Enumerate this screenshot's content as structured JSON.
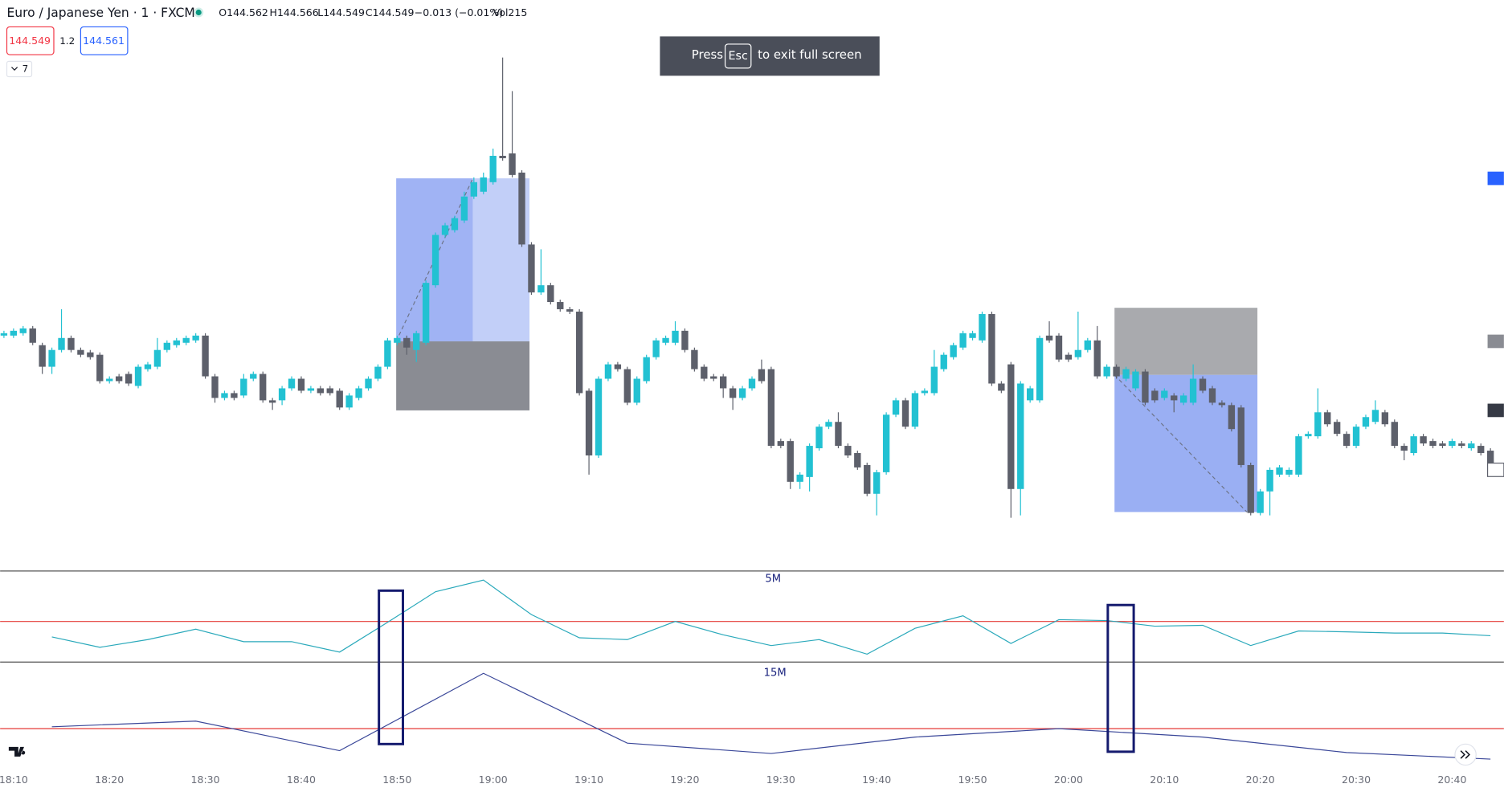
{
  "header": {
    "symbol": "Euro / Japanese Yen · 1 · FXCM",
    "open": "O144.562",
    "high": "H144.566",
    "low": "L144.549",
    "close": "C144.549",
    "change": "−0.013 (−0.01%)",
    "volume": "Vol215",
    "sell": "144.549",
    "spread": "1.2",
    "buy": "144.561",
    "indicators": "7"
  },
  "toast": {
    "press": "Press",
    "key": "Esc",
    "rest": "to exit full screen"
  },
  "chart_data": [
    {
      "type": "candlestick",
      "up_color": "#22c1d2",
      "down_color": "#5d606b",
      "ylim": [
        144.5448,
        144.5686
      ],
      "categories": [
        null,
        "18:10",
        null,
        null,
        null,
        null,
        null,
        null,
        null,
        null,
        null,
        "18:20",
        null,
        null,
        null,
        null,
        null,
        null,
        null,
        null,
        null,
        "18:30",
        null,
        null,
        null,
        null,
        null,
        null,
        null,
        null,
        null,
        "18:40",
        null,
        null,
        null,
        null,
        null,
        null,
        null,
        null,
        null,
        "18:50",
        null,
        null,
        null,
        null,
        null,
        null,
        null,
        null,
        null,
        "19:00",
        null,
        null,
        null,
        null,
        null,
        null,
        null,
        null,
        null,
        "19:10",
        null,
        null,
        null,
        null,
        null,
        null,
        null,
        null,
        null,
        "19:20",
        null,
        null,
        null,
        null,
        null,
        null,
        null,
        null,
        null,
        "19:30",
        null,
        null,
        null,
        null,
        null,
        null,
        null,
        null,
        null,
        "19:40",
        null,
        null,
        null,
        null,
        null,
        null,
        null,
        null,
        null,
        "19:50",
        null,
        null,
        null,
        null,
        null,
        null,
        null,
        null,
        null,
        "20:00",
        null,
        null,
        null,
        null,
        null,
        null,
        null,
        null,
        null,
        "20:10",
        null,
        null,
        null,
        null,
        null,
        null,
        null,
        null,
        null,
        "20:20",
        null,
        null,
        null,
        null,
        null,
        null,
        null,
        null,
        null,
        "20:30",
        null,
        null,
        null,
        null,
        null,
        null,
        null,
        null,
        null,
        "20:40",
        null,
        null,
        null,
        null
      ],
      "open": [
        144.5546,
        144.5546,
        144.5547,
        144.5549,
        144.5542,
        144.5533,
        144.554,
        144.5545,
        144.554,
        144.5539,
        144.5538,
        144.5527,
        144.5529,
        144.553,
        144.5525,
        144.5532,
        144.5533,
        144.554,
        144.5542,
        144.5543,
        144.5544,
        144.5546,
        144.5529,
        144.552,
        144.5522,
        144.5521,
        144.5528,
        144.553,
        144.5519,
        144.5519,
        144.5524,
        144.5528,
        144.5523,
        144.5524,
        144.5524,
        144.5523,
        144.5516,
        144.552,
        144.5524,
        144.5528,
        144.5533,
        144.5543,
        144.5545,
        144.554,
        144.5543,
        144.5567,
        144.5588,
        144.559,
        144.5594,
        144.5604,
        144.5606,
        144.561,
        144.5621,
        144.5622,
        144.5614,
        144.5584,
        144.5564,
        144.5567,
        144.556,
        144.5557,
        144.5556,
        144.5523,
        144.5496,
        144.5528,
        144.5534,
        144.5532,
        144.5518,
        144.5527,
        144.5537,
        144.5543,
        144.5543,
        144.5548,
        144.554,
        144.5533,
        144.5529,
        144.5529,
        144.5524,
        144.552,
        144.5524,
        144.5532,
        144.5532,
        144.5502,
        144.5502,
        144.5485,
        144.5487,
        144.5499,
        144.5508,
        144.551,
        144.55,
        144.5497,
        144.5492,
        144.548,
        144.5489,
        144.5513,
        144.5519,
        144.5508,
        144.5522,
        144.5522,
        144.5532,
        144.5537,
        144.5541,
        144.5545,
        144.5544,
        144.5555,
        144.5526,
        144.5534,
        144.5482,
        144.5519,
        144.5519,
        144.5546,
        144.5546,
        144.5538,
        144.5537,
        144.554,
        144.5544,
        144.5529,
        144.5533,
        144.5528,
        144.5524,
        144.5531,
        144.5523,
        144.552,
        144.5521,
        144.5518,
        144.5518,
        144.5528,
        144.5524,
        144.5518,
        144.5517,
        144.5516,
        144.5492,
        144.5472,
        144.5481,
        144.5488,
        144.5488,
        144.5488,
        144.5504,
        144.5504,
        144.5514,
        144.551,
        144.5505,
        144.55,
        144.5508,
        144.551,
        144.5514,
        144.551,
        144.55,
        144.5497,
        144.5504,
        144.5502,
        144.5501,
        144.55,
        144.5501,
        144.5499,
        144.55,
        144.5498
      ],
      "high": [
        144.5548,
        144.5549,
        144.555,
        144.555,
        144.5543,
        144.5541,
        144.5557,
        144.5546,
        144.5541,
        144.554,
        144.5539,
        144.5529,
        144.553,
        144.5531,
        144.5534,
        144.5535,
        144.5545,
        144.5544,
        144.5545,
        144.5546,
        144.5547,
        144.5547,
        144.553,
        144.5523,
        144.5523,
        144.553,
        144.5531,
        144.5531,
        144.552,
        144.5525,
        144.5529,
        144.5529,
        144.5525,
        144.5525,
        144.5525,
        144.5524,
        144.5522,
        144.5525,
        144.5529,
        144.5534,
        144.5545,
        144.5546,
        144.5546,
        144.5548,
        144.5569,
        144.5589,
        144.5593,
        144.5596,
        144.5606,
        144.5612,
        144.5614,
        144.5624,
        144.5662,
        144.5648,
        144.5615,
        144.5585,
        144.5582,
        144.5568,
        144.5561,
        144.5558,
        144.5557,
        144.5524,
        144.5529,
        144.5535,
        144.5535,
        144.5533,
        144.5529,
        144.5538,
        144.5545,
        144.5546,
        144.5552,
        144.5549,
        144.5541,
        144.5534,
        144.553,
        144.553,
        144.5525,
        144.5525,
        144.5529,
        144.5536,
        144.5533,
        144.5503,
        144.5503,
        144.5489,
        144.5501,
        144.5509,
        144.5511,
        144.5514,
        144.5501,
        144.5498,
        144.5493,
        144.549,
        144.5514,
        144.552,
        144.552,
        144.5523,
        144.5524,
        144.554,
        144.5539,
        144.5543,
        144.5548,
        144.5548,
        144.5556,
        144.5556,
        144.5527,
        144.5535,
        144.5527,
        144.5525,
        144.5546,
        144.5552,
        144.5547,
        144.5539,
        144.5556,
        144.5545,
        144.555,
        144.5534,
        144.5534,
        144.5533,
        144.5532,
        144.5532,
        144.5524,
        144.5524,
        144.5522,
        144.5522,
        144.5534,
        144.5529,
        144.5525,
        144.5519,
        144.5518,
        144.5517,
        144.5493,
        144.5482,
        144.5491,
        144.5492,
        144.5491,
        144.5505,
        144.5506,
        144.5524,
        144.5515,
        144.5511,
        144.5506,
        144.5509,
        144.5513,
        144.5519,
        144.5515,
        144.5511,
        144.5501,
        144.5505,
        144.5505,
        144.5503,
        144.5502,
        144.5503,
        144.5502,
        144.5502,
        144.5501,
        144.5499
      ],
      "low": [
        144.5545,
        144.5545,
        144.5546,
        144.5542,
        144.553,
        144.553,
        144.5539,
        144.5539,
        144.5537,
        144.5536,
        144.5526,
        144.5526,
        144.5526,
        144.5525,
        144.5524,
        144.5531,
        144.5532,
        144.5539,
        144.5541,
        144.5542,
        144.5543,
        144.5528,
        144.5518,
        144.5519,
        144.5519,
        144.552,
        144.5527,
        144.5518,
        144.5515,
        144.5517,
        144.5523,
        144.5522,
        144.5522,
        144.5521,
        144.5521,
        144.5515,
        144.5515,
        144.5519,
        144.5523,
        144.5527,
        144.5532,
        144.5542,
        144.5538,
        144.5535,
        144.5542,
        144.5566,
        144.5587,
        144.5589,
        144.5593,
        144.5603,
        144.5605,
        144.5609,
        144.5619,
        144.5612,
        144.5583,
        144.5563,
        144.5563,
        144.5559,
        144.5556,
        144.5555,
        144.5521,
        144.5488,
        144.5495,
        144.5527,
        144.5531,
        144.5517,
        144.5517,
        144.5526,
        144.5536,
        144.5542,
        144.5542,
        144.5539,
        144.5531,
        144.5527,
        144.5527,
        144.552,
        144.5515,
        144.5519,
        144.5523,
        144.5526,
        144.5499,
        144.5499,
        144.5482,
        144.5482,
        144.5481,
        144.5498,
        144.5507,
        144.5499,
        144.5495,
        144.549,
        144.5479,
        144.5471,
        144.5488,
        144.5512,
        144.5507,
        144.5507,
        144.5521,
        144.5521,
        144.5531,
        144.5536,
        144.554,
        144.5544,
        144.5543,
        144.5525,
        144.5522,
        144.547,
        144.5471,
        144.5518,
        144.5518,
        144.5543,
        144.5535,
        144.5535,
        144.5536,
        144.5539,
        144.5528,
        144.5528,
        144.5528,
        144.5527,
        144.5523,
        144.5517,
        144.5518,
        144.5519,
        144.5514,
        144.5517,
        144.5517,
        144.5522,
        144.5517,
        144.5516,
        144.5506,
        144.5491,
        144.5471,
        144.5471,
        144.5471,
        144.5487,
        144.5487,
        144.5487,
        144.5503,
        144.5503,
        144.5508,
        144.5504,
        144.5499,
        144.5499,
        144.5507,
        144.5509,
        144.5508,
        144.5499,
        144.5494,
        144.5496,
        144.55,
        144.5499,
        144.5499,
        144.5499,
        144.5499,
        144.5498,
        144.5496,
        144.5489
      ],
      "close": [
        144.5547,
        144.5548,
        144.5549,
        144.5543,
        144.5533,
        144.554,
        144.5545,
        144.554,
        144.5538,
        144.5537,
        144.5527,
        144.5528,
        144.5527,
        144.5526,
        144.5533,
        144.5534,
        144.554,
        144.5543,
        144.5544,
        144.5545,
        144.5546,
        144.5529,
        144.552,
        144.5522,
        144.552,
        144.5528,
        144.553,
        144.5519,
        144.5518,
        144.5524,
        144.5528,
        144.5523,
        144.5524,
        144.5522,
        144.5522,
        144.5516,
        144.5521,
        144.5524,
        144.5528,
        144.5533,
        144.5544,
        144.5545,
        144.5541,
        144.5547,
        144.5568,
        144.5588,
        144.5592,
        144.5595,
        144.5604,
        144.561,
        144.5612,
        144.5621,
        144.562,
        144.5613,
        144.5584,
        144.5564,
        144.5567,
        144.556,
        144.5557,
        144.5556,
        144.5522,
        144.5496,
        144.5528,
        144.5534,
        144.5532,
        144.5518,
        144.5528,
        144.5537,
        144.5544,
        144.5545,
        144.5548,
        144.554,
        144.5532,
        144.5528,
        144.5528,
        144.5524,
        144.552,
        144.5524,
        144.5528,
        144.5527,
        144.55,
        144.55,
        144.5485,
        144.5488,
        144.55,
        144.5508,
        144.551,
        144.55,
        144.5496,
        144.5491,
        144.548,
        144.5489,
        144.5513,
        144.5519,
        144.5508,
        144.5522,
        144.5523,
        144.5533,
        144.5538,
        144.5542,
        144.5547,
        144.5547,
        144.5555,
        144.5526,
        144.5523,
        144.5482,
        144.5526,
        144.5524,
        144.5545,
        144.5544,
        144.5536,
        144.5536,
        144.554,
        144.5544,
        144.5529,
        144.5533,
        144.5529,
        144.5532,
        144.5531,
        144.5518,
        144.5519,
        144.5523,
        144.5519,
        144.5521,
        144.5528,
        144.5523,
        144.5518,
        144.5517,
        144.5507,
        144.5492,
        144.5472,
        144.5481,
        144.549,
        144.5491,
        144.549,
        144.5504,
        144.5505,
        144.5514,
        144.5509,
        144.5505,
        144.55,
        144.5508,
        144.5512,
        144.5515,
        144.5509,
        144.55,
        144.5498,
        144.5504,
        144.5501,
        144.55,
        144.55,
        144.5502,
        144.55,
        144.5501,
        144.5497,
        144.549
      ]
    },
    {
      "type": "line",
      "title": "5M",
      "color": "#2aa9bb",
      "ylim": [
        36.5,
        66.8
      ],
      "reference_line": 50,
      "reference_color": "#e53935",
      "values": [
        44.8,
        41.3,
        43.9,
        47.4,
        43.2,
        43.2,
        39.7,
        49.7,
        60.0,
        63.9,
        52.3,
        44.5,
        43.9,
        50.0,
        45.5,
        41.9,
        43.9,
        39.0,
        47.7,
        51.9,
        42.6,
        50.6,
        50.3,
        48.4,
        48.7,
        41.9,
        46.8,
        46.5,
        46.1,
        46.1,
        45.2
      ]
    },
    {
      "type": "line",
      "title": "15M",
      "color": "#3a4799",
      "ylim": [
        41.8,
        64.1
      ],
      "reference_line": 50,
      "reference_color": "#e53935",
      "values": [
        50.4,
        51.6,
        45.3,
        61.8,
        46.9,
        44.7,
        48.2,
        50.0,
        48.2,
        44.9,
        43.5
      ]
    }
  ]
}
